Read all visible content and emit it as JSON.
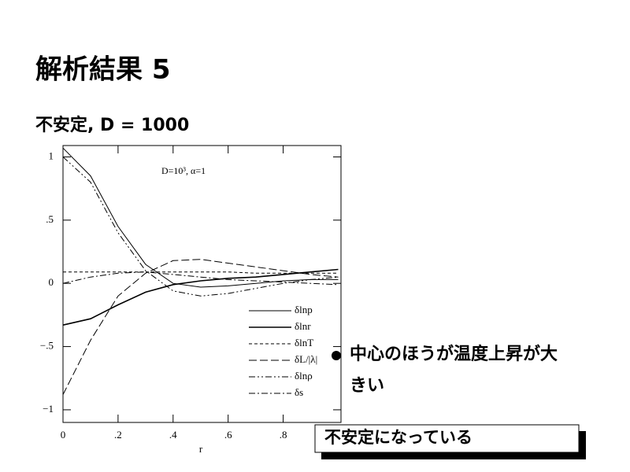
{
  "slide": {
    "title": "解析結果 5",
    "subtitle": "不安定, D = 1000",
    "bullet": "中心のほうが温度上昇が大きい",
    "box": "不安定になっている"
  },
  "chart_data": {
    "type": "line",
    "annotation": "D=10³, α=1",
    "x_label": "r",
    "x": [
      0,
      0.1,
      0.2,
      0.3,
      0.4,
      0.5,
      0.6,
      0.7,
      0.8,
      0.9,
      1.0
    ],
    "series": [
      {
        "name": "δlnp",
        "color": "#000000",
        "linestyle": "solid",
        "values": [
          1.07,
          0.85,
          0.45,
          0.15,
          0.0,
          -0.03,
          -0.02,
          0.0,
          0.02,
          0.03,
          0.03
        ]
      },
      {
        "name": "δlnr",
        "color": "#000000",
        "linestyle": "thick",
        "values": [
          -0.33,
          -0.28,
          -0.17,
          -0.07,
          -0.01,
          0.02,
          0.04,
          0.05,
          0.07,
          0.09,
          0.11
        ]
      },
      {
        "name": "δlnT",
        "color": "#000000",
        "linestyle": "dashed",
        "values": [
          0.09,
          0.09,
          0.09,
          0.09,
          0.09,
          0.09,
          0.09,
          0.08,
          0.08,
          0.08,
          0.08
        ]
      },
      {
        "name": "δL/|λ|",
        "color": "#000000",
        "linestyle": "longdash",
        "values": [
          -0.88,
          -0.45,
          -0.1,
          0.08,
          0.18,
          0.19,
          0.16,
          0.13,
          0.1,
          0.07,
          0.05
        ]
      },
      {
        "name": "δlnρ",
        "color": "#000000",
        "linestyle": "dashdotdot",
        "values": [
          1.0,
          0.8,
          0.4,
          0.1,
          -0.06,
          -0.1,
          -0.08,
          -0.04,
          0.0,
          0.03,
          0.05
        ]
      },
      {
        "name": "δs",
        "color": "#000000",
        "linestyle": "dashdot",
        "values": [
          0.0,
          0.05,
          0.08,
          0.09,
          0.07,
          0.05,
          0.03,
          0.02,
          0.01,
          0.0,
          -0.01
        ]
      }
    ],
    "xlim": [
      0,
      1.01
    ],
    "ylim": [
      -1.1,
      1.09
    ],
    "xticks": [
      0,
      {
        "value": 0.2,
        "label": ".2"
      },
      {
        "value": 0.4,
        "label": ".4"
      },
      {
        "value": 0.6,
        "label": ".6"
      },
      {
        "value": 0.8,
        "label": ".8"
      }
    ],
    "yticks": [
      1,
      {
        "value": 0.5,
        "label": ".5"
      },
      0,
      {
        "value": -0.5,
        "label": "−.5"
      },
      {
        "value": -1,
        "label": "−1"
      }
    ],
    "legend": "lower-right"
  }
}
